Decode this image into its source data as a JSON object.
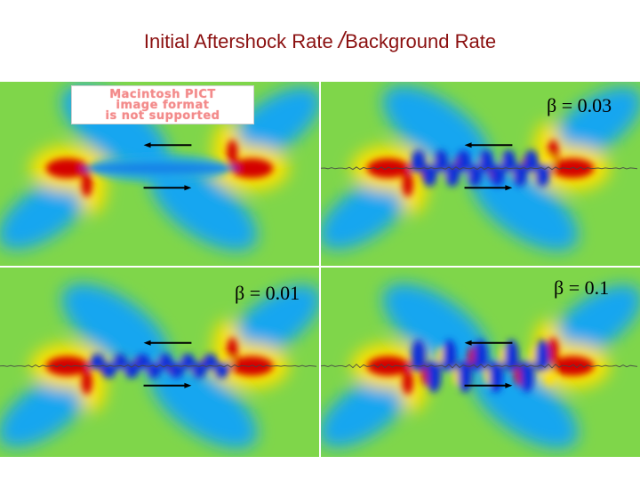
{
  "title": {
    "left": "Initial Aftershock Rate",
    "slash": "/",
    "right": "Background Rate"
  },
  "placeholder_image": {
    "lines": [
      "Macintosh PICT",
      "image format",
      "is not supported"
    ]
  },
  "panels": [
    {
      "id": "top-left",
      "beta_label": "",
      "roughness": 0
    },
    {
      "id": "top-right",
      "beta_label": "β = 0.03",
      "roughness": 0.03
    },
    {
      "id": "bottom-left",
      "beta_label": "β = 0.01",
      "roughness": 0.01
    },
    {
      "id": "bottom-right",
      "beta_label": "β = 0.1",
      "roughness": 0.1
    }
  ],
  "colors": {
    "background_field": "#7fd64a",
    "high": "#d40000",
    "mid_high": "#ffe100",
    "low": "#0a2fd8",
    "mid_low": "#18a6f0",
    "title": "#8b1010"
  }
}
